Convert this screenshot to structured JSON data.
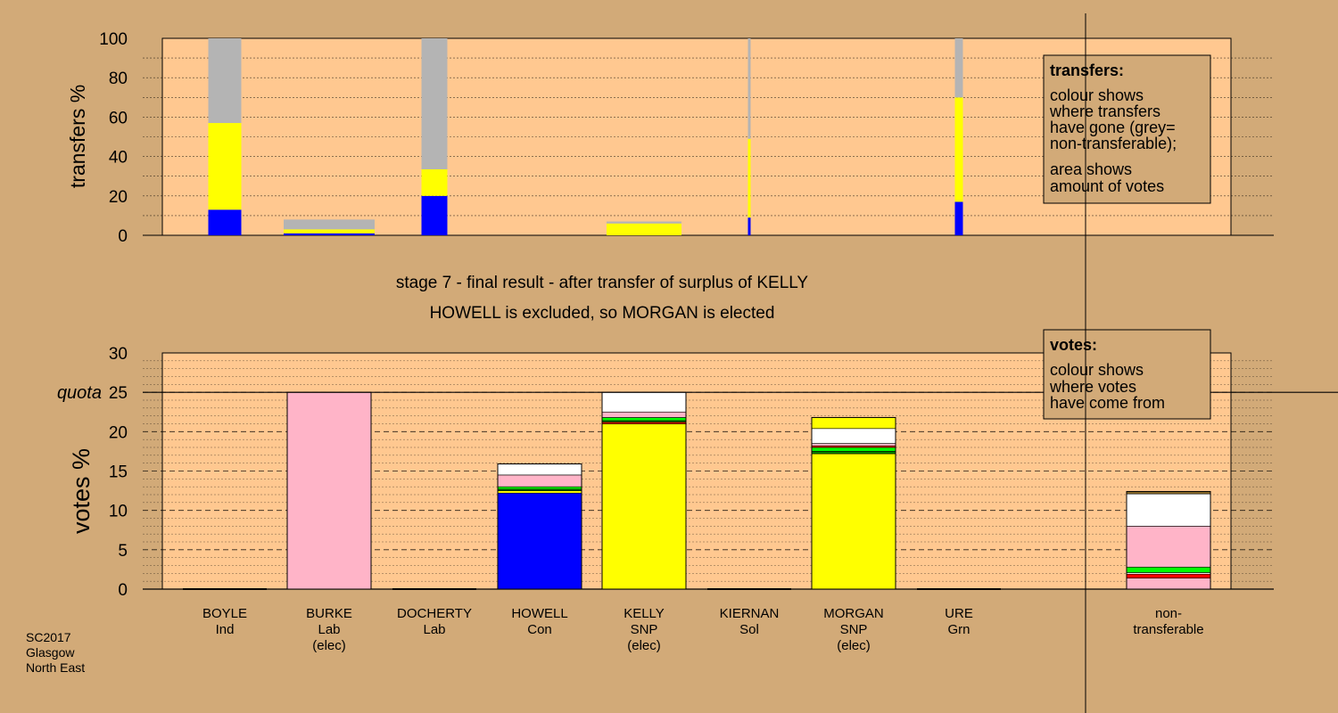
{
  "colors": {
    "background": "#d2aa78",
    "plot": "#ffc890",
    "blue": "#0000ff",
    "yellow": "#ffff00",
    "grey": "#b4b4b4",
    "pink": "#ffb4c8",
    "white": "#ffffff",
    "green": "#00ff00",
    "red": "#ff0000",
    "dark_green": "#008000",
    "brown": "#8b6c2a"
  },
  "candidates": [
    {
      "name": "BOYLE",
      "party": "Ind",
      "status": ""
    },
    {
      "name": "BURKE",
      "party": "Lab",
      "status": "(elec)"
    },
    {
      "name": "DOCHERTY",
      "party": "Lab",
      "status": ""
    },
    {
      "name": "HOWELL",
      "party": "Con",
      "status": ""
    },
    {
      "name": "KELLY",
      "party": "SNP",
      "status": "(elec)"
    },
    {
      "name": "KIERNAN",
      "party": "Sol",
      "status": ""
    },
    {
      "name": "MORGAN",
      "party": "SNP",
      "status": "(elec)"
    },
    {
      "name": "URE",
      "party": "Grn",
      "status": ""
    }
  ],
  "nontransferable_label": [
    "non-",
    "transferable"
  ],
  "stage_caption": [
    "stage 7 - final result - after transfer of surplus of KELLY",
    "HOWELL is excluded, so MORGAN is elected"
  ],
  "footer": [
    "SC2017",
    "Glasgow",
    "North East"
  ],
  "chart_data": [
    {
      "type": "bar",
      "ylabel": "transfers %",
      "ylim": [
        0,
        100
      ],
      "yticks": [
        0,
        20,
        40,
        60,
        80,
        100
      ],
      "grid": true,
      "legend": {
        "title": "transfers:",
        "lines": [
          "colour shows",
          "where transfers",
          "have gone (grey=",
          "non-transferable);",
          "area shows",
          "amount of votes"
        ],
        "position": "top-right"
      },
      "categories": [
        "BOYLE",
        "BURKE",
        "DOCHERTY",
        "HOWELL",
        "KELLY",
        "KIERNAN",
        "MORGAN",
        "URE"
      ],
      "bars": [
        {
          "category": "BOYLE",
          "width_pct": 1.0,
          "segments": [
            {
              "color": "blue",
              "value": 13
            },
            {
              "color": "yellow",
              "value": 44
            },
            {
              "color": "grey",
              "value": 43
            }
          ]
        },
        {
          "category": "BURKE",
          "width_pct": 2.8,
          "segments": [
            {
              "color": "blue",
              "value": 1
            },
            {
              "color": "yellow",
              "value": 2
            },
            {
              "color": "grey",
              "value": 5
            }
          ]
        },
        {
          "category": "DOCHERTY",
          "width_pct": 0.8,
          "segments": [
            {
              "color": "blue",
              "value": 20
            },
            {
              "color": "yellow",
              "value": 13.5
            },
            {
              "color": "grey",
              "value": 66.5
            }
          ]
        },
        {
          "category": "KELLY",
          "width_pct": 2.4,
          "segments": [
            {
              "color": "yellow",
              "value": 6
            },
            {
              "color": "grey",
              "value": 1
            }
          ]
        },
        {
          "category": "KIERNAN",
          "width_pct": 0.1,
          "segments": [
            {
              "color": "blue",
              "value": 9
            },
            {
              "color": "yellow",
              "value": 40
            },
            {
              "color": "grey",
              "value": 51
            }
          ]
        },
        {
          "category": "URE",
          "width_pct": 0.25,
          "segments": [
            {
              "color": "blue",
              "value": 17
            },
            {
              "color": "yellow",
              "value": 53
            },
            {
              "color": "grey",
              "value": 30
            }
          ]
        }
      ]
    },
    {
      "type": "bar",
      "ylabel": "votes %",
      "ylim": [
        0,
        30
      ],
      "yticks": [
        0,
        5,
        10,
        15,
        20,
        25,
        30
      ],
      "grid": true,
      "quota": {
        "label": "quota",
        "value": 25
      },
      "legend": {
        "title": "votes:",
        "lines": [
          "colour shows",
          "where votes",
          "have come from"
        ],
        "position": "top-right"
      },
      "categories": [
        "BOYLE",
        "BURKE",
        "DOCHERTY",
        "HOWELL",
        "KELLY",
        "KIERNAN",
        "MORGAN",
        "URE",
        "non-transferable"
      ],
      "bars": [
        {
          "category": "BOYLE",
          "segments": []
        },
        {
          "category": "BURKE",
          "segments": [
            {
              "color": "pink",
              "value": 25
            }
          ]
        },
        {
          "category": "DOCHERTY",
          "segments": []
        },
        {
          "category": "HOWELL",
          "segments": [
            {
              "color": "blue",
              "value": 12.2
            },
            {
              "color": "yellow",
              "value": 0.3
            },
            {
              "color": "dark_green",
              "value": 0.2
            },
            {
              "color": "green",
              "value": 0.3
            },
            {
              "color": "pink",
              "value": 1.5
            },
            {
              "color": "white",
              "value": 1.4
            }
          ]
        },
        {
          "category": "KELLY",
          "segments": [
            {
              "color": "yellow",
              "value": 21
            },
            {
              "color": "red",
              "value": 0.2
            },
            {
              "color": "dark_green",
              "value": 0.2
            },
            {
              "color": "green",
              "value": 0.4
            },
            {
              "color": "pink",
              "value": 0.7
            },
            {
              "color": "white",
              "value": 2.5
            }
          ]
        },
        {
          "category": "KIERNAN",
          "segments": []
        },
        {
          "category": "MORGAN",
          "segments": [
            {
              "color": "yellow",
              "value": 17.2
            },
            {
              "color": "dark_green",
              "value": 0.3
            },
            {
              "color": "green",
              "value": 0.5
            },
            {
              "color": "red",
              "value": 0.2
            },
            {
              "color": "pink",
              "value": 0.3
            },
            {
              "color": "white",
              "value": 1.9
            },
            {
              "color": "yellow",
              "value": 1.4
            }
          ]
        },
        {
          "category": "URE",
          "segments": []
        },
        {
          "category": "non-transferable",
          "segments": [
            {
              "color": "pink",
              "value": 1.4
            },
            {
              "color": "red",
              "value": 0.5
            },
            {
              "color": "white",
              "value": 0.2
            },
            {
              "color": "green",
              "value": 0.7
            },
            {
              "color": "pink",
              "value": 5.2
            },
            {
              "color": "white",
              "value": 4.1
            },
            {
              "color": "brown",
              "value": 0.3
            }
          ]
        }
      ]
    }
  ]
}
